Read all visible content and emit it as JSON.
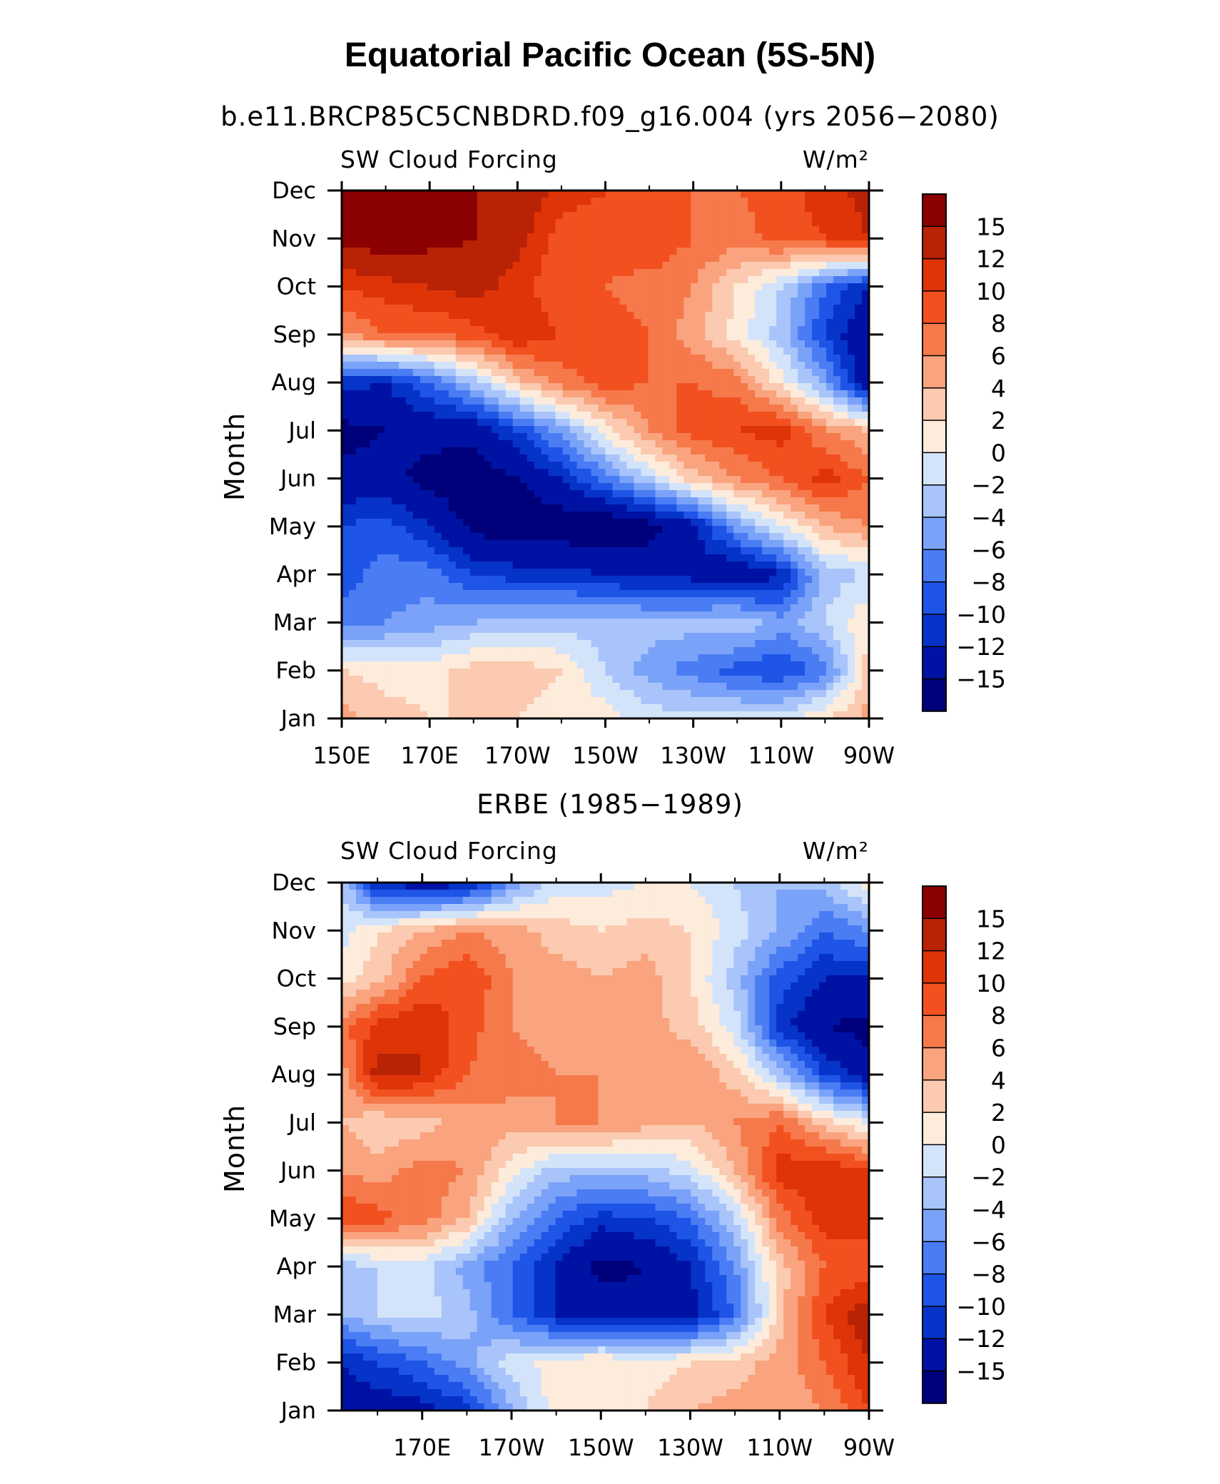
{
  "figure": {
    "title": "Equatorial Pacific Ocean (5S-5N)",
    "palette": [
      "#00007a",
      "#0012a4",
      "#0633c8",
      "#1e55e6",
      "#4a7cf4",
      "#7aa2f8",
      "#a8c4fa",
      "#d3e4fa",
      "#fdebdb",
      "#fbcab0",
      "#f9a47e",
      "#f6794b",
      "#f2511f",
      "#df3408",
      "#b82205",
      "#8b0000"
    ],
    "colorbar_labels": [
      "15",
      "12",
      "10",
      "8",
      "6",
      "4",
      "2",
      "0",
      "−2",
      "−4",
      "−6",
      "−8",
      "−10",
      "−12",
      "−15"
    ]
  },
  "chart_data": [
    {
      "type": "heatmap",
      "title": "b.e11.BRCP85C5CNBDRD.f09_g16.004 (yrs 2056−2080)",
      "left_label": "SW Cloud Forcing",
      "right_label": "W/m²",
      "xlabel": "",
      "ylabel": "Month",
      "x_tick_labels": [
        "150E",
        "170E",
        "170W",
        "150W",
        "130W",
        "110W",
        "90W"
      ],
      "y_tick_labels": [
        "Jan",
        "Feb",
        "Mar",
        "Apr",
        "May",
        "Jun",
        "Jul",
        "Aug",
        "Sep",
        "Oct",
        "Nov",
        "Dec"
      ],
      "xlim": [
        150,
        270
      ],
      "ylim": [
        1,
        12
      ],
      "levels": [
        -16,
        -15,
        -12,
        -10,
        -8,
        -6,
        -4,
        -2,
        0,
        2,
        4,
        6,
        8,
        10,
        12,
        15,
        16
      ],
      "x": [
        150,
        160,
        170,
        180,
        190,
        200,
        210,
        220,
        230,
        240,
        250,
        260,
        270
      ],
      "months": [
        "Jan",
        "Feb",
        "Mar",
        "Apr",
        "May",
        "Jun",
        "Jul",
        "Aug",
        "Sep",
        "Oct",
        "Nov",
        "Dec"
      ],
      "z": [
        [
          5,
          3,
          2,
          2,
          2,
          1,
          1,
          -1,
          -1,
          -1,
          -1,
          2,
          5
        ],
        [
          2,
          1,
          1,
          3,
          3,
          2,
          -2,
          -5,
          -7,
          -9,
          -10,
          -7,
          3
        ],
        [
          -7,
          -6,
          -5,
          -4,
          -3,
          -3,
          -3,
          -3,
          -3,
          -2,
          -5,
          -2,
          2
        ],
        [
          -9,
          -7,
          -7,
          -10,
          -11,
          -11,
          -12,
          -13,
          -13,
          -15,
          -12,
          -3,
          -2
        ],
        [
          -10,
          -9,
          -12,
          -16,
          -17,
          -17,
          -18,
          -16,
          -13,
          -5,
          0,
          4,
          6
        ],
        [
          -14,
          -14,
          -16,
          -17,
          -15,
          -12,
          -7,
          -2,
          3,
          6,
          8,
          11,
          8
        ],
        [
          -16,
          -15,
          -14,
          -14,
          -10,
          -5,
          1,
          6,
          9,
          10,
          11,
          6,
          4
        ],
        [
          -11,
          -12,
          -8,
          -3,
          3,
          7,
          9,
          8,
          8,
          7,
          1,
          -5,
          -15
        ],
        [
          6,
          8,
          8,
          9,
          12,
          10,
          9,
          8,
          5,
          1,
          -3,
          -10,
          -15
        ],
        [
          10,
          11,
          12,
          13,
          11,
          8,
          8,
          7,
          6,
          2,
          -2,
          -8,
          -12
        ],
        [
          16,
          17,
          16,
          15,
          13,
          9,
          9,
          10,
          8,
          7,
          9,
          10,
          12
        ],
        [
          17,
          17,
          16,
          15,
          14,
          11,
          10,
          9,
          8,
          8,
          9,
          11,
          13
        ]
      ]
    },
    {
      "type": "heatmap",
      "title": "ERBE (1985−1989)",
      "left_label": "SW Cloud Forcing",
      "right_label": "W/m²",
      "xlabel": "",
      "ylabel": "Month",
      "x_tick_labels": [
        "170E",
        "170W",
        "150W",
        "130W",
        "110W",
        "90W"
      ],
      "y_tick_labels": [
        "Jan",
        "Feb",
        "Mar",
        "Apr",
        "May",
        "Jun",
        "Jul",
        "Aug",
        "Sep",
        "Oct",
        "Nov",
        "Dec"
      ],
      "xlim": [
        152,
        270
      ],
      "ylim": [
        1,
        12
      ],
      "levels": [
        -16,
        -15,
        -12,
        -10,
        -8,
        -6,
        -4,
        -2,
        0,
        2,
        4,
        6,
        8,
        10,
        12,
        15,
        16
      ],
      "x": [
        152,
        160,
        170,
        180,
        190,
        200,
        210,
        220,
        230,
        240,
        250,
        260,
        270
      ],
      "months": [
        "Jan",
        "Feb",
        "Mar",
        "Apr",
        "May",
        "Jun",
        "Jul",
        "Aug",
        "Sep",
        "Oct",
        "Nov",
        "Dec"
      ],
      "z": [
        [
          -13,
          -14,
          -13,
          -11,
          -4,
          1,
          1,
          2,
          4,
          5,
          4,
          6,
          10
        ],
        [
          -12,
          -10,
          -8,
          -5,
          -1,
          1,
          2,
          1,
          2,
          3,
          5,
          8,
          12
        ],
        [
          -4,
          -2,
          -1,
          -3,
          -8,
          -12,
          -13,
          -14,
          -13,
          -8,
          3,
          10,
          14
        ],
        [
          -3,
          -2,
          -1,
          -5,
          -8,
          -12,
          -16,
          -15,
          -12,
          -6,
          3,
          8,
          8
        ],
        [
          10,
          9,
          7,
          4,
          -4,
          -8,
          -11,
          -10,
          -8,
          -2,
          7,
          11,
          12
        ],
        [
          6,
          5,
          7,
          6,
          1,
          -3,
          -3,
          -3,
          -1,
          4,
          11,
          12,
          10
        ],
        [
          4,
          2,
          3,
          5,
          5,
          6,
          6,
          5,
          4,
          6,
          8,
          3,
          0
        ],
        [
          5,
          13,
          12,
          8,
          7,
          6,
          6,
          6,
          6,
          3,
          -3,
          -10,
          -14
        ],
        [
          7,
          11,
          12,
          9,
          6,
          5,
          5,
          5,
          3,
          -1,
          -11,
          -15,
          -16
        ],
        [
          1,
          3,
          8,
          10,
          6,
          5,
          4,
          5,
          2,
          -3,
          -9,
          -12,
          -12
        ],
        [
          -1,
          2,
          4,
          6,
          5,
          3,
          2,
          3,
          2,
          -1,
          -4,
          -8,
          -6
        ],
        [
          -2,
          -12,
          -14,
          -13,
          -6,
          -1,
          -1,
          0,
          0,
          -2,
          -4,
          -3,
          1
        ]
      ]
    }
  ]
}
